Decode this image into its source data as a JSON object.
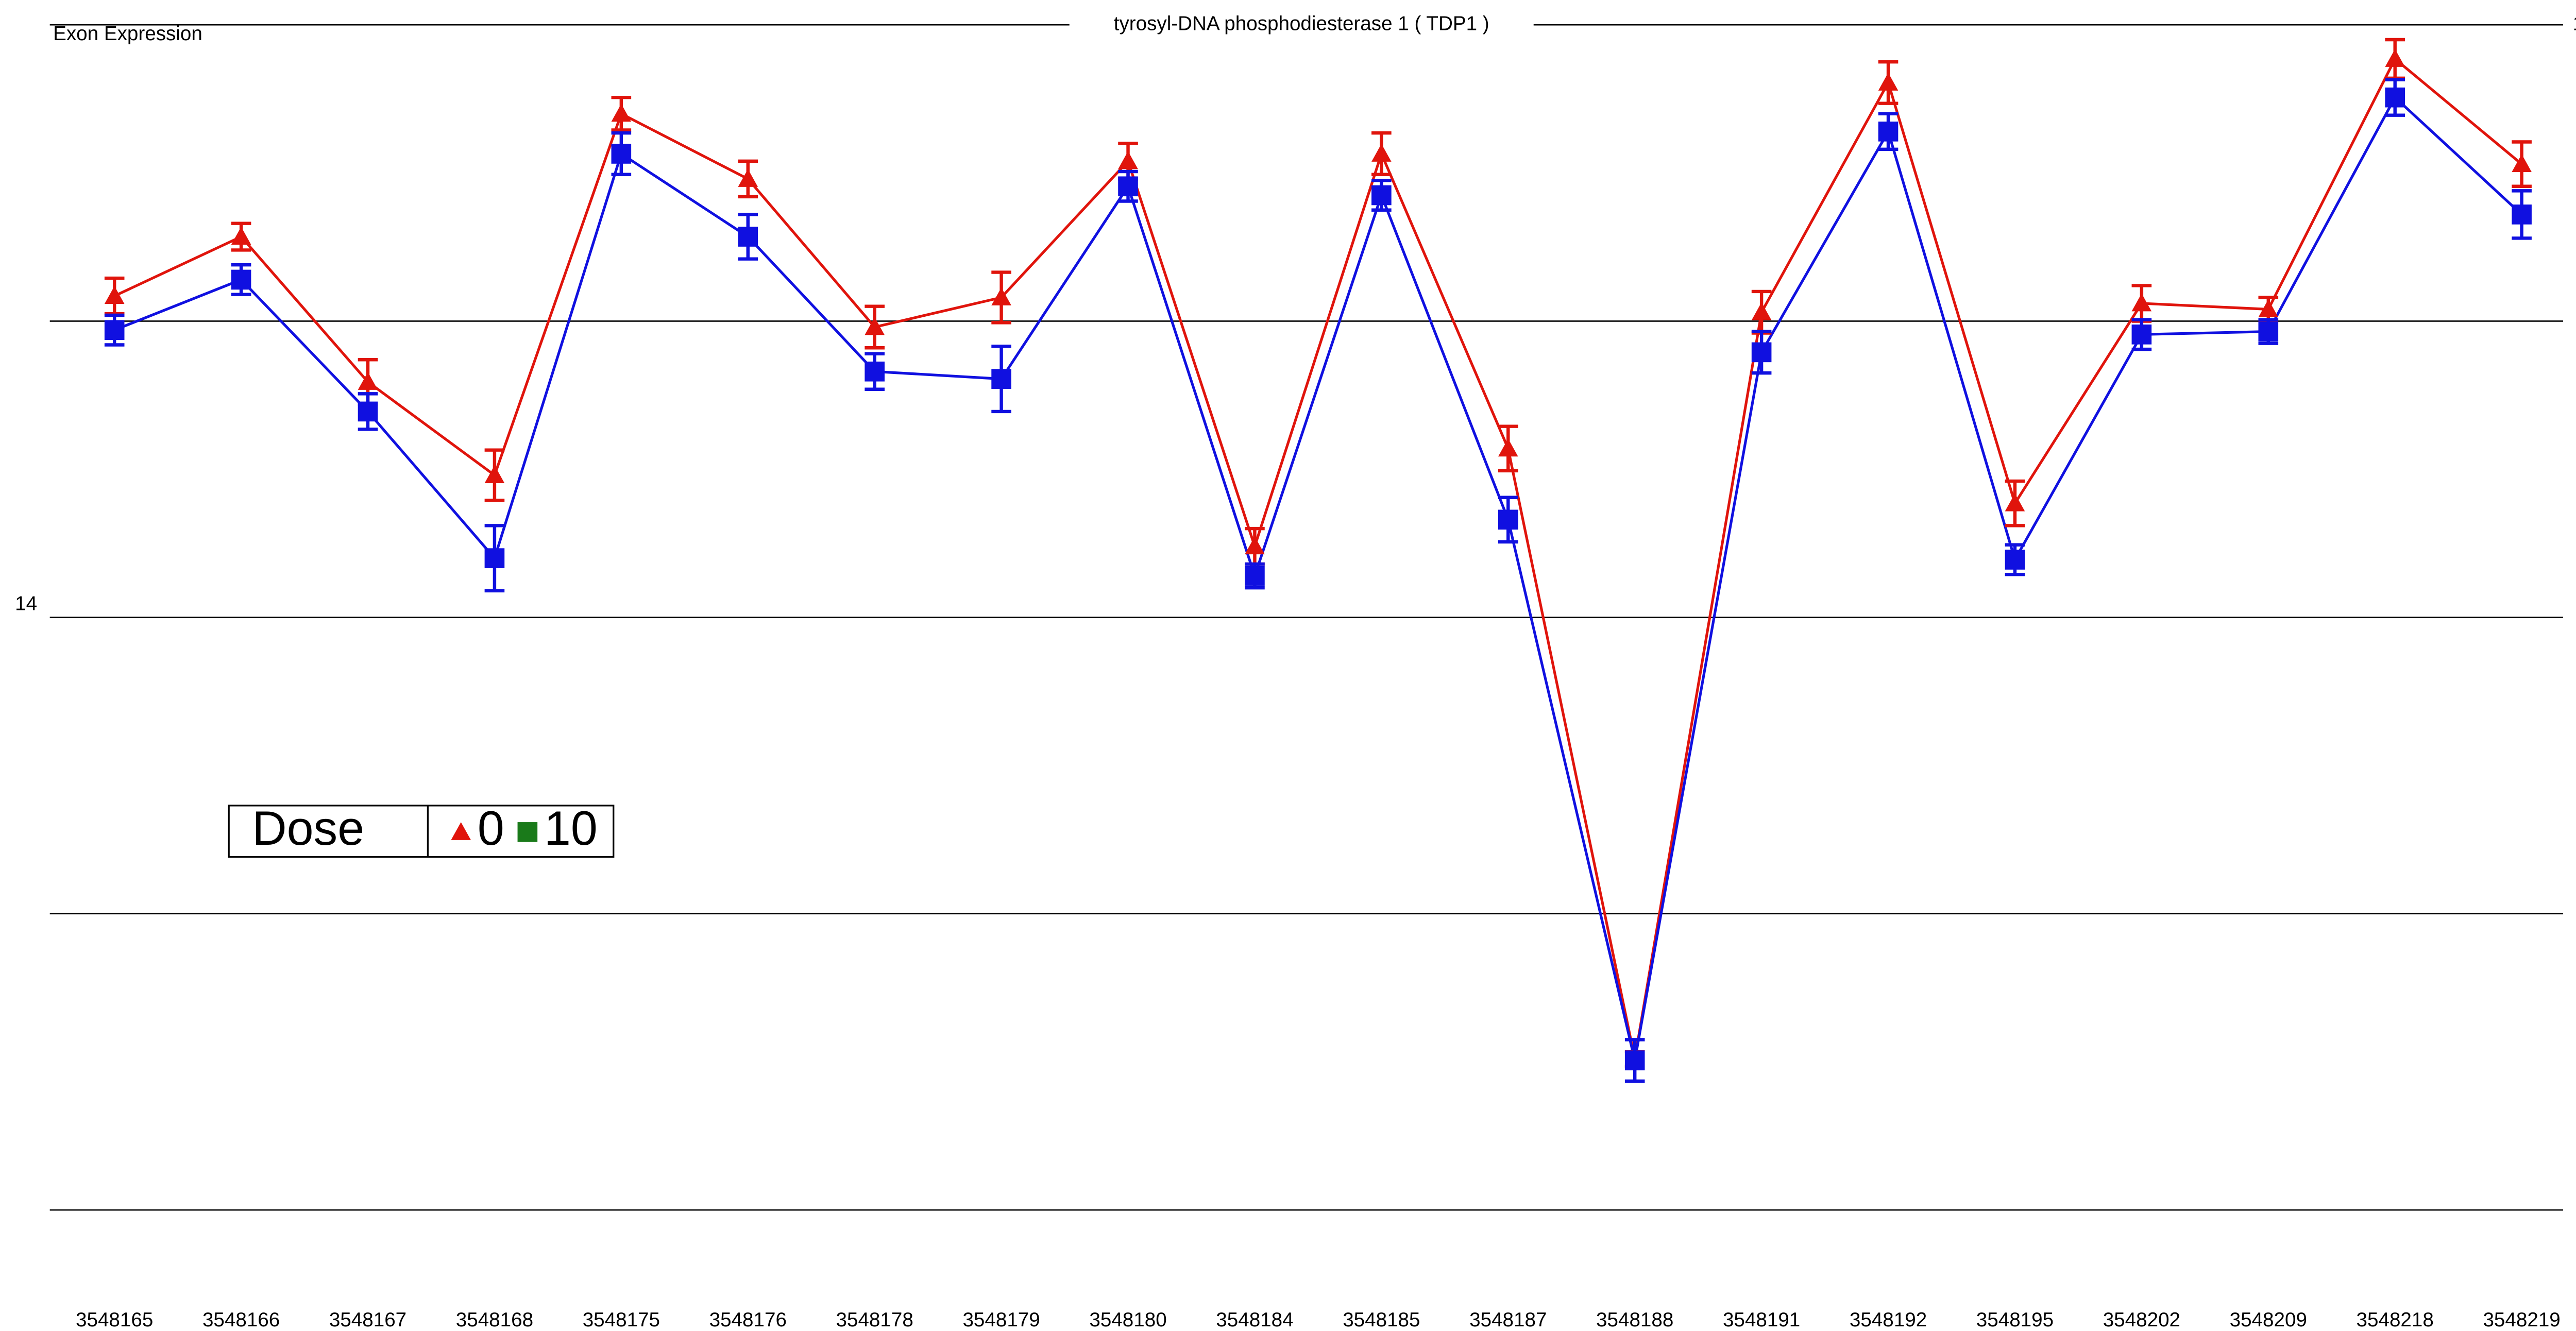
{
  "chart_data": {
    "type": "line",
    "title": "tyrosyl-DNA phosphodiesterase 1 ( TDP1 )",
    "y_label": "Exon Expression",
    "left_axis_label": "14",
    "legend_title": "Dose",
    "categories": [
      "3548165",
      "3548166",
      "3548167",
      "3548168",
      "3548175",
      "3548176",
      "3548178",
      "3548179",
      "3548180",
      "3548184",
      "3548185",
      "3548187",
      "3548188",
      "3548191",
      "3548192",
      "3548195",
      "3548202",
      "3548209",
      "3548218",
      "3548219"
    ],
    "series": [
      {
        "name": "0",
        "color": "#e0140c",
        "legend_color": "#e0140c",
        "marker": "triangle",
        "values": [
          9.17,
          9.57,
          8.59,
          7.96,
          10.4,
          9.96,
          8.96,
          9.16,
          10.08,
          7.48,
          10.13,
          8.14,
          4.02,
          9.06,
          10.61,
          7.77,
          9.12,
          9.08,
          10.77,
          10.06
        ],
        "errors": [
          0.12,
          0.09,
          0.15,
          0.17,
          0.11,
          0.12,
          0.14,
          0.17,
          0.12,
          0.12,
          0.14,
          0.15,
          0.05,
          0.14,
          0.14,
          0.15,
          0.12,
          0.08,
          0.13,
          0.15
        ]
      },
      {
        "name": "10",
        "color": "#1010e0",
        "legend_color": "#1a7a1a",
        "marker": "square",
        "values": [
          8.94,
          9.28,
          8.39,
          7.4,
          10.13,
          9.57,
          8.66,
          8.61,
          9.91,
          7.28,
          9.85,
          7.66,
          4.01,
          8.79,
          10.28,
          7.39,
          8.91,
          8.93,
          10.51,
          9.72
        ],
        "errors": [
          0.1,
          0.1,
          0.12,
          0.22,
          0.14,
          0.15,
          0.12,
          0.22,
          0.1,
          0.08,
          0.1,
          0.15,
          0.14,
          0.14,
          0.12,
          0.1,
          0.1,
          0.08,
          0.12,
          0.16
        ]
      }
    ],
    "ylim": [
      3,
      11
    ],
    "yticks": [
      3,
      5,
      7,
      9,
      11
    ],
    "grid": true
  }
}
